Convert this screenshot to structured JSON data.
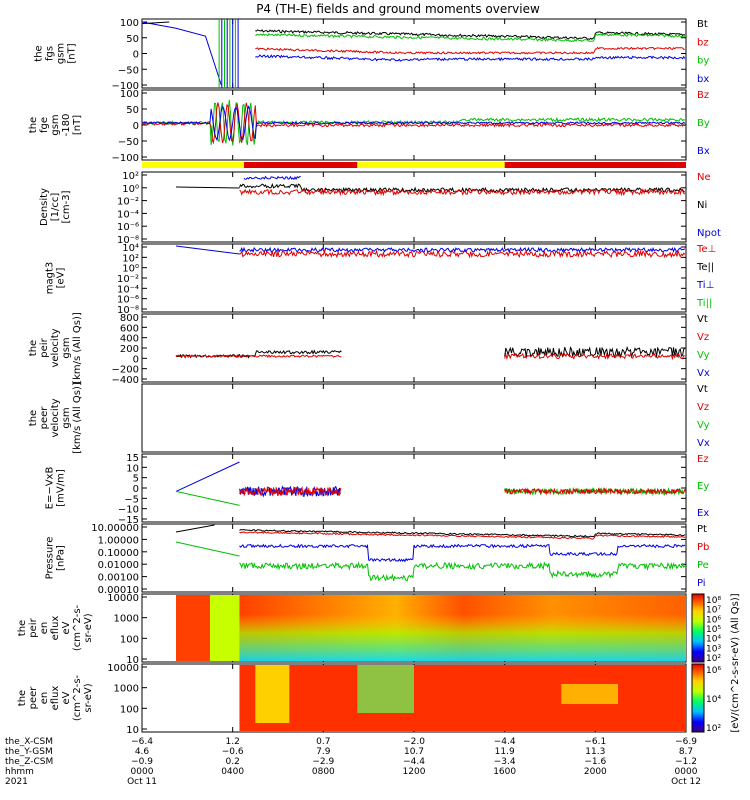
{
  "title": "P4 (TH-E) fields and ground moments overview",
  "chart_data": {
    "type": "line",
    "panels": [
      {
        "id": "p1",
        "ylabel": [
          "the",
          "fgs",
          "gsm",
          "[nT]"
        ],
        "yticks": [
          "100",
          "50",
          "0",
          "−50",
          "−100"
        ],
        "legend": [
          {
            "t": "Bt",
            "c": "#000000"
          },
          {
            "t": "bz",
            "c": "#e00000"
          },
          {
            "t": "by",
            "c": "#00c000"
          },
          {
            "t": "bx",
            "c": "#0000e0"
          }
        ]
      },
      {
        "id": "p2",
        "ylabel": [
          "the",
          "fge",
          "gsm",
          "-180",
          "[nT]"
        ],
        "yticks": [
          "100",
          "50",
          "0",
          "−50",
          "−100"
        ],
        "legend": [
          {
            "t": "Bz",
            "c": "#e00000"
          },
          {
            "t": "By",
            "c": "#00c000"
          },
          {
            "t": "Bx",
            "c": "#0000e0"
          }
        ]
      },
      {
        "id": "p3",
        "ylabel": [
          "Density",
          "[1/cc]",
          "[cm-3]"
        ],
        "yticks": [
          "10²",
          "10⁰",
          "10⁻²",
          "10⁻⁴",
          "10⁻⁶",
          "10⁻⁸"
        ],
        "legend": [
          {
            "t": "Ne",
            "c": "#e00000"
          },
          {
            "t": "Ni",
            "c": "#000000"
          },
          {
            "t": "Npot",
            "c": "#0000e0"
          }
        ]
      },
      {
        "id": "p4",
        "ylabel": [
          "magt3",
          "[eV]"
        ],
        "yticks": [
          "10⁴",
          "10²",
          "10⁰",
          "10⁻²",
          "10⁻⁴",
          "10⁻⁶",
          "10⁻⁸"
        ],
        "legend": [
          {
            "t": "Te⊥",
            "c": "#e00000"
          },
          {
            "t": "Te||",
            "c": "#000000"
          },
          {
            "t": "Ti⊥",
            "c": "#0000e0"
          },
          {
            "t": "Ti||",
            "c": "#00c000"
          }
        ]
      },
      {
        "id": "p5",
        "ylabel": [
          "the",
          "peir",
          "velocity",
          "gsm",
          "[km/s (All Qs)]"
        ],
        "yticks": [
          "800",
          "600",
          "400",
          "200",
          "0",
          "−200",
          "−400"
        ],
        "legend": [
          {
            "t": "Vt",
            "c": "#000000"
          },
          {
            "t": "Vz",
            "c": "#e00000"
          },
          {
            "t": "Vy",
            "c": "#00c000"
          },
          {
            "t": "Vx",
            "c": "#0000e0"
          }
        ]
      },
      {
        "id": "p6",
        "ylabel": [
          "the",
          "peer",
          "velocity",
          "gsm",
          "[km/s (All Qs)]"
        ],
        "yticks": [],
        "legend": [
          {
            "t": "Vt",
            "c": "#000000"
          },
          {
            "t": "Vz",
            "c": "#e00000"
          },
          {
            "t": "Vy",
            "c": "#00c000"
          },
          {
            "t": "Vx",
            "c": "#0000e0"
          }
        ]
      },
      {
        "id": "p7",
        "ylabel": [
          "E=−VxB",
          "[mV/m]"
        ],
        "yticks": [
          "15",
          "10",
          "5",
          "0",
          "−5",
          "−10",
          "−15"
        ],
        "legend": [
          {
            "t": "Ez",
            "c": "#e00000"
          },
          {
            "t": "Ey",
            "c": "#00c000"
          },
          {
            "t": "Ex",
            "c": "#0000e0"
          }
        ]
      },
      {
        "id": "p8",
        "ylabel": [
          "Pressure",
          "[nPa]"
        ],
        "yticks": [
          "10.00000",
          "1.00000",
          "0.10000",
          "0.01000",
          "0.00100",
          "0.00010"
        ],
        "legend": [
          {
            "t": "Pt",
            "c": "#000000"
          },
          {
            "t": "Pb",
            "c": "#e00000"
          },
          {
            "t": "Pe",
            "c": "#00c000"
          },
          {
            "t": "Pi",
            "c": "#0000e0"
          }
        ]
      },
      {
        "id": "p9",
        "ylabel": [
          "the",
          "peir",
          "en",
          "eflux",
          "eV",
          "(cm^2-s-",
          "sr-eV)"
        ],
        "yticks": [
          "10000",
          "1000",
          "100",
          "10"
        ]
      },
      {
        "id": "p10",
        "ylabel": [
          "the",
          "peer",
          "en",
          "eflux",
          "eV",
          "(cm^2-s-",
          "sr-eV)"
        ],
        "yticks": [
          "10000",
          "1000",
          "100",
          "10"
        ]
      }
    ],
    "colorbar": {
      "label": "[eV/(cm^2-s-sr-eV) (All Qs)]",
      "ticks_top": [
        "10⁸",
        "10⁷",
        "10⁶",
        "10⁵",
        "10⁴",
        "10³",
        "10²"
      ],
      "ticks_bottom": [
        "10⁶",
        "10⁴",
        "10²"
      ]
    },
    "xaxis": {
      "rows": [
        {
          "label": "the_X-CSM",
          "values": [
            "−6.4",
            "1.2",
            "0.7",
            "−2.0",
            "−4.4",
            "−6.1",
            "−6.9"
          ]
        },
        {
          "label": "the_Y-GSM",
          "values": [
            "4.6",
            "−0.6",
            "7.9",
            "10.7",
            "11.9",
            "11.3",
            "8.7"
          ]
        },
        {
          "label": "the_Z-CSM",
          "values": [
            "−0.9",
            "0.2",
            "−2.9",
            "−4.4",
            "−3.4",
            "−1.6",
            "−1.2"
          ]
        },
        {
          "label": "hhmm",
          "values": [
            "0000",
            "0400",
            "0800",
            "1200",
            "1600",
            "2000",
            "0000"
          ]
        }
      ],
      "date_row": {
        "label": "2021",
        "values": [
          "Oct 11",
          "",
          "",
          "",
          "",
          "",
          "Oct 12"
        ]
      }
    },
    "mode_bar": [
      {
        "from": "0000",
        "to": "0430",
        "color": "#ffff00"
      },
      {
        "from": "0430",
        "to": "0930",
        "color": "#e00000"
      },
      {
        "from": "0930",
        "to": "1600",
        "color": "#ffff00"
      },
      {
        "from": "1600",
        "to": "0000",
        "color": "#e00000"
      }
    ]
  }
}
